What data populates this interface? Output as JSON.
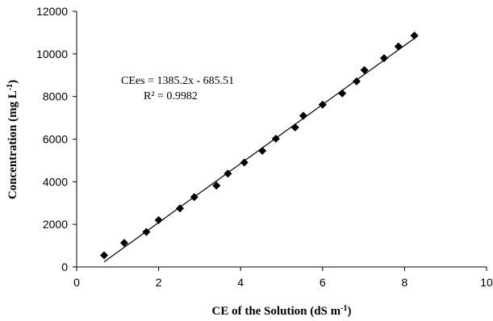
{
  "chart_data": {
    "type": "scatter",
    "xlabel": "CE of the Solution (dS m",
    "xlabel_sup": "-1",
    "xlabel_end": ")",
    "ylabel": "Concentration  (mg L",
    "ylabel_sup": "-1",
    "ylabel_end": ")",
    "xlim": [
      0,
      10
    ],
    "ylim": [
      0,
      12000
    ],
    "x_ticks": [
      "0",
      "2",
      "4",
      "6",
      "8",
      "10"
    ],
    "y_ticks": [
      "0",
      "2000",
      "4000",
      "6000",
      "8000",
      "10000",
      "12000"
    ],
    "grid": false,
    "legend": "none",
    "marker": "diamond",
    "marker_color": "#000000",
    "points": [
      {
        "x": 0.67,
        "y": 550
      },
      {
        "x": 1.16,
        "y": 1130
      },
      {
        "x": 1.7,
        "y": 1640
      },
      {
        "x": 2.0,
        "y": 2200
      },
      {
        "x": 2.52,
        "y": 2750
      },
      {
        "x": 2.87,
        "y": 3280
      },
      {
        "x": 3.41,
        "y": 3820
      },
      {
        "x": 3.69,
        "y": 4380
      },
      {
        "x": 4.09,
        "y": 4900
      },
      {
        "x": 4.53,
        "y": 5450
      },
      {
        "x": 4.86,
        "y": 6020
      },
      {
        "x": 5.33,
        "y": 6550
      },
      {
        "x": 5.53,
        "y": 7100
      },
      {
        "x": 6.0,
        "y": 7620
      },
      {
        "x": 6.48,
        "y": 8150
      },
      {
        "x": 6.83,
        "y": 8710
      },
      {
        "x": 7.02,
        "y": 9240
      },
      {
        "x": 7.5,
        "y": 9800
      },
      {
        "x": 7.85,
        "y": 10350
      },
      {
        "x": 8.24,
        "y": 10860
      }
    ],
    "trendline": {
      "slope": 1385.2,
      "intercept": -685.51,
      "x_range": [
        0.67,
        8.24
      ],
      "equation": "CEes = 1385.2x - 685.51",
      "r_squared": "R² = 0.9982"
    }
  }
}
